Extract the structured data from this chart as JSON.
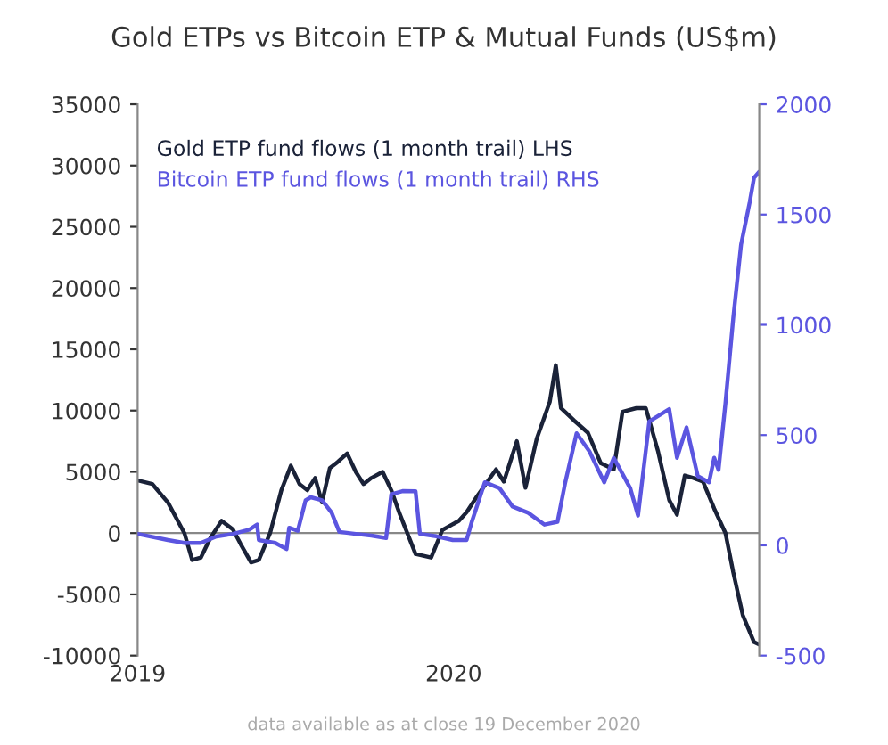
{
  "chart_data": {
    "type": "line",
    "title": "Gold ETPs vs Bitcoin ETP & Mutual Funds (US$m)",
    "annotations": [
      "data available as at close 19 December 2020"
    ],
    "xlim": [
      "2019-01-01",
      "2020-12-19"
    ],
    "xticks": [
      {
        "value": "2019-01-01",
        "label": "2019"
      },
      {
        "value": "2020-01-01",
        "label": "2020"
      }
    ],
    "ylim": [
      -10000,
      35000
    ],
    "yticks": [
      -10000,
      -5000,
      0,
      5000,
      10000,
      15000,
      20000,
      25000,
      30000,
      35000
    ],
    "y2lim": [
      -500,
      2000
    ],
    "y2ticks": [
      -500,
      0,
      500,
      1000,
      1500,
      2000
    ],
    "ref_lines": [
      {
        "axis": "y",
        "value": 0,
        "color": "#888888"
      }
    ],
    "grid": false,
    "legend": "top left",
    "marker": "none",
    "line_style": "solid",
    "series": [
      {
        "name": "Gold ETP fund flows (1 month trail) LHS",
        "color": "#1a2238",
        "x": [
          "2019-01-01",
          "2019-01-18",
          "2019-02-05",
          "2019-02-24",
          "2019-03-05",
          "2019-03-15",
          "2019-03-26",
          "2019-04-08",
          "2019-04-21",
          "2019-04-30",
          "2019-05-12",
          "2019-05-21",
          "2019-06-03",
          "2019-06-16",
          "2019-06-27",
          "2019-07-07",
          "2019-07-16",
          "2019-07-25",
          "2019-08-02",
          "2019-08-11",
          "2019-08-20",
          "2019-08-31",
          "2019-09-10",
          "2019-09-19",
          "2019-09-28",
          "2019-10-11",
          "2019-10-21",
          "2019-10-30",
          "2019-11-18",
          "2019-12-06",
          "2019-12-19",
          "2020-01-07",
          "2020-01-16",
          "2020-01-28",
          "2020-02-19",
          "2020-02-28",
          "2020-03-14",
          "2020-03-24",
          "2020-04-06",
          "2020-04-21",
          "2020-04-28",
          "2020-05-04",
          "2020-05-19",
          "2020-06-04",
          "2020-06-19",
          "2020-07-04",
          "2020-07-14",
          "2020-07-30",
          "2020-08-10",
          "2020-08-24",
          "2020-09-06",
          "2020-09-15",
          "2020-09-24",
          "2020-10-04",
          "2020-10-15",
          "2020-10-28",
          "2020-11-10",
          "2020-11-19",
          "2020-11-30",
          "2020-12-13",
          "2020-12-19"
        ],
        "values": [
          4300,
          4000,
          2500,
          0,
          -2200,
          -2000,
          -400,
          1000,
          300,
          -900,
          -2400,
          -2200,
          0,
          3500,
          5500,
          4000,
          3500,
          4500,
          2500,
          5300,
          5800,
          6500,
          5000,
          4000,
          4500,
          5000,
          3500,
          1700,
          -1700,
          -2000,
          250,
          1000,
          1700,
          3000,
          5200,
          4200,
          7500,
          3700,
          7700,
          10700,
          13700,
          10200,
          9200,
          8200,
          5700,
          5200,
          9900,
          10200,
          10200,
          6700,
          2700,
          1500,
          4700,
          4500,
          4200,
          2000,
          0,
          -3200,
          -6700,
          -8900,
          -9100
        ]
      },
      {
        "name": "Bitcoin ETP fund flows (1 month trail) RHS",
        "color": "#5b55e0",
        "axis": "y2",
        "x": [
          "2019-01-01",
          "2019-02-05",
          "2019-02-24",
          "2019-03-15",
          "2019-04-02",
          "2019-04-21",
          "2019-05-10",
          "2019-05-19",
          "2019-05-21",
          "2019-06-09",
          "2019-06-22",
          "2019-06-25",
          "2019-07-05",
          "2019-07-14",
          "2019-07-20",
          "2019-08-02",
          "2019-08-13",
          "2019-08-22",
          "2019-09-10",
          "2019-09-28",
          "2019-10-15",
          "2019-10-21",
          "2019-11-03",
          "2019-11-18",
          "2019-11-23",
          "2019-12-12",
          "2019-12-31",
          "2020-01-16",
          "2020-01-22",
          "2020-02-06",
          "2020-02-23",
          "2020-03-09",
          "2020-03-27",
          "2020-04-15",
          "2020-04-30",
          "2020-05-09",
          "2020-05-22",
          "2020-06-06",
          "2020-06-23",
          "2020-07-04",
          "2020-07-23",
          "2020-08-01",
          "2020-08-14",
          "2020-09-06",
          "2020-09-15",
          "2020-09-26",
          "2020-10-09",
          "2020-10-22",
          "2020-10-28",
          "2020-11-02",
          "2020-11-10",
          "2020-11-19",
          "2020-11-28",
          "2020-12-08",
          "2020-12-13",
          "2020-12-19"
        ],
        "values": [
          52,
          24,
          11,
          11,
          40,
          52,
          71,
          94,
          24,
          11,
          -17,
          80,
          66,
          204,
          218,
          204,
          149,
          61,
          52,
          44,
          33,
          232,
          246,
          245,
          52,
          41,
          24,
          24,
          107,
          286,
          259,
          176,
          148,
          94,
          107,
          286,
          508,
          425,
          286,
          397,
          259,
          135,
          562,
          618,
          397,
          535,
          314,
          286,
          397,
          342,
          645,
          1032,
          1363,
          1556,
          1667,
          1694
        ]
      }
    ]
  }
}
